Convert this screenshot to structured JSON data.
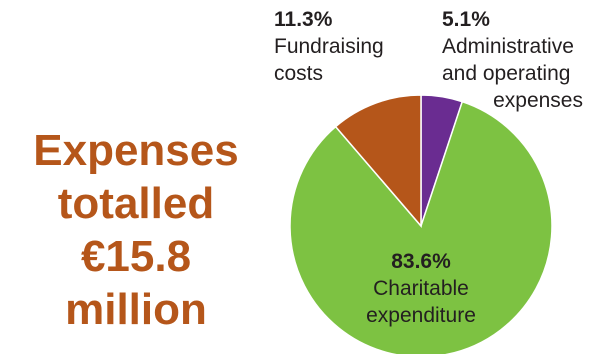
{
  "headline": {
    "lines": [
      "Expenses",
      "totalled",
      "€15.8",
      "million"
    ]
  },
  "colors": {
    "headline": "#b5561a",
    "text": "#231f20"
  },
  "chart_data": {
    "type": "pie",
    "title": "",
    "slices": [
      {
        "value": 83.6,
        "label": "83.6%",
        "name_lines": [
          "Charitable",
          "expenditure"
        ],
        "color": "#7dc242"
      },
      {
        "value": 11.3,
        "label": "11.3%",
        "name_lines": [
          "Fundraising",
          "costs"
        ],
        "color": "#b5561a"
      },
      {
        "value": 5.1,
        "label": "5.1%",
        "name_lines": [
          "Administrative",
          "and operating",
          "expenses"
        ],
        "color": "#6a2c91"
      }
    ]
  }
}
